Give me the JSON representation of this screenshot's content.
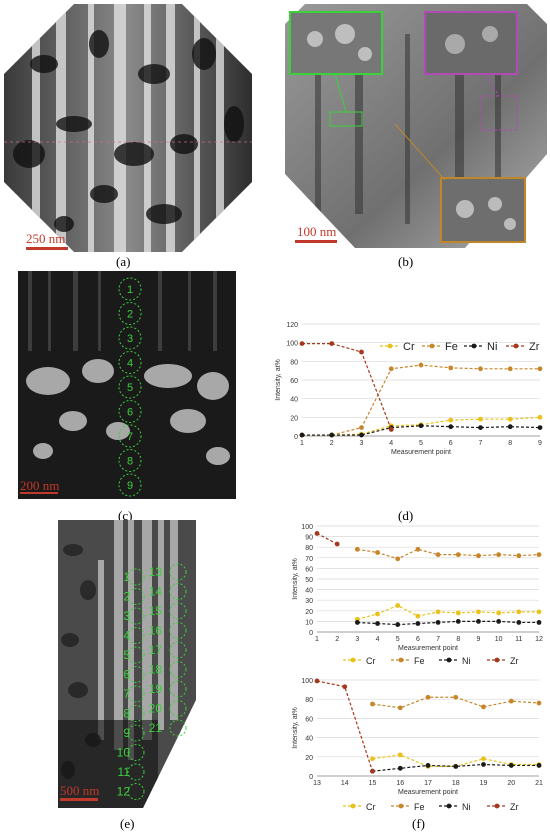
{
  "captions": {
    "a": "(a)",
    "b": "(b)",
    "c": "(c)",
    "d": "(d)",
    "e": "(e)",
    "f": "(f)"
  },
  "scalebars": {
    "a": "250 nm",
    "b": "100 nm",
    "c": "200 nm",
    "e": "500 nm"
  },
  "circle_labels_c": [
    "1",
    "2",
    "3",
    "4",
    "5",
    "6",
    "7",
    "8",
    "9"
  ],
  "circle_labels_e_left": [
    "1",
    "2",
    "3",
    "4",
    "5",
    "6",
    "7",
    "8",
    "9",
    "10",
    "11",
    "12"
  ],
  "circle_labels_e_right": [
    "13",
    "14",
    "15",
    "16",
    "17",
    "18",
    "19",
    "20",
    "21"
  ],
  "colors": {
    "Cr": "#e8c21a",
    "Fe": "#c8862a",
    "Ni": "#1a1a1a",
    "Zr": "#a5391e",
    "green": "#3bd13b",
    "scalebar": "#c0392b"
  },
  "chart_data": [
    {
      "type": "line",
      "xlabel": "Measurement point",
      "ylabel": "Intensity, at%",
      "x": [
        1,
        2,
        3,
        4,
        5,
        6,
        7,
        8,
        9
      ],
      "ylim": [
        0,
        120
      ],
      "yticks": [
        0,
        20,
        40,
        60,
        80,
        100,
        120
      ],
      "legend": "top-right",
      "series": [
        {
          "name": "Cr",
          "values": [
            1,
            1,
            2,
            11,
            12,
            17,
            18,
            18,
            20
          ]
        },
        {
          "name": "Fe",
          "values": [
            1,
            1,
            9,
            72,
            76,
            73,
            72,
            72,
            72
          ]
        },
        {
          "name": "Ni",
          "values": [
            1,
            1,
            1,
            9,
            11,
            10,
            9,
            10,
            9
          ]
        },
        {
          "name": "Zr",
          "values": [
            99,
            99,
            90,
            7,
            null,
            null,
            null,
            null,
            null
          ]
        }
      ]
    },
    {
      "type": "line",
      "xlabel": "Measurement point",
      "ylabel": "Intensity, at%",
      "x": [
        1,
        2,
        3,
        4,
        5,
        6,
        7,
        8,
        9,
        10,
        11,
        12
      ],
      "ylim": [
        0,
        100
      ],
      "yticks": [
        0,
        10,
        20,
        30,
        40,
        50,
        60,
        70,
        80,
        90,
        100
      ],
      "legend": "bottom",
      "series": [
        {
          "name": "Cr",
          "values": [
            null,
            null,
            12,
            17,
            25,
            15,
            19,
            18,
            19,
            18,
            19,
            19
          ]
        },
        {
          "name": "Fe",
          "values": [
            null,
            null,
            78,
            75,
            69,
            78,
            73,
            73,
            72,
            73,
            72,
            73
          ]
        },
        {
          "name": "Ni",
          "values": [
            null,
            null,
            9,
            8,
            7,
            8,
            9,
            10,
            10,
            10,
            9,
            9
          ]
        },
        {
          "name": "Zr",
          "values": [
            93,
            83,
            null,
            null,
            null,
            null,
            null,
            null,
            null,
            null,
            null,
            null
          ]
        }
      ]
    },
    {
      "type": "line",
      "xlabel": "Measurement point",
      "ylabel": "Intensity, at%",
      "x": [
        13,
        14,
        15,
        16,
        17,
        18,
        19,
        20,
        21
      ],
      "ylim": [
        0,
        100
      ],
      "yticks": [
        0,
        20,
        40,
        60,
        80,
        100
      ],
      "legend": "bottom",
      "series": [
        {
          "name": "Cr",
          "values": [
            null,
            null,
            18,
            22,
            10,
            10,
            18,
            12,
            12
          ]
        },
        {
          "name": "Fe",
          "values": [
            null,
            null,
            75,
            71,
            82,
            82,
            72,
            78,
            76
          ]
        },
        {
          "name": "Ni",
          "values": [
            null,
            null,
            5,
            8,
            11,
            10,
            12,
            11,
            11
          ]
        },
        {
          "name": "Zr",
          "values": [
            99,
            93,
            5,
            null,
            null,
            null,
            null,
            null,
            null
          ]
        }
      ]
    }
  ]
}
